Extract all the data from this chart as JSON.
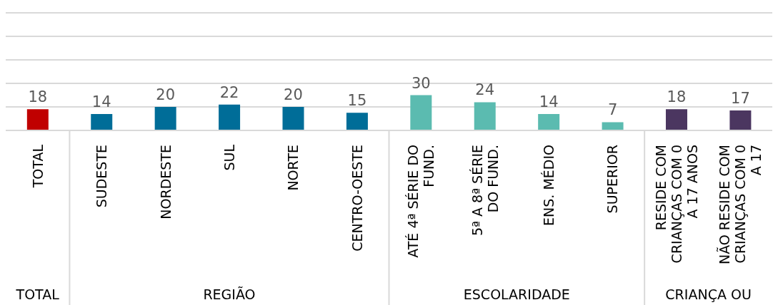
{
  "chart_data": {
    "type": "bar",
    "categories": [
      "TOTAL",
      "SUDESTE",
      "NORDESTE",
      "SUL",
      "NORTE",
      "CENTRO-OESTE",
      "ATÉ 4ª SÉRIE DO FUND.",
      "5ª A 8ª SÉRIE DO FUND.",
      "ENS. MÉDIO",
      "SUPERIOR",
      "RESIDE COM CRIANÇAS COM 0 A 17 ANOS",
      "NÃO RESIDE COM CRIANÇAS COM 0 A 17"
    ],
    "values": [
      18,
      14,
      20,
      22,
      20,
      15,
      30,
      24,
      14,
      7,
      18,
      17
    ],
    "colors": [
      "#c00000",
      "#006d98",
      "#006d98",
      "#006d98",
      "#006d98",
      "#006d98",
      "#5bbbb0",
      "#5bbbb0",
      "#5bbbb0",
      "#5bbbb0",
      "#4b3660",
      "#4b3660"
    ],
    "ylim": [
      0,
      100
    ],
    "yticks": [
      {
        "value": 0,
        "label": null
      },
      {
        "value": 20,
        "label": null
      },
      {
        "value": 40,
        "label": null
      },
      {
        "value": 60,
        "label": null
      },
      {
        "value": 80,
        "label": null
      },
      {
        "value": 100,
        "label": null
      }
    ],
    "grid": "y",
    "tick_labels": "x",
    "data_labels": true,
    "annotations": [
      "TOTAL",
      "REGIÃO",
      "ESCOLARIDADE",
      "CRIANÇA OU"
    ]
  }
}
